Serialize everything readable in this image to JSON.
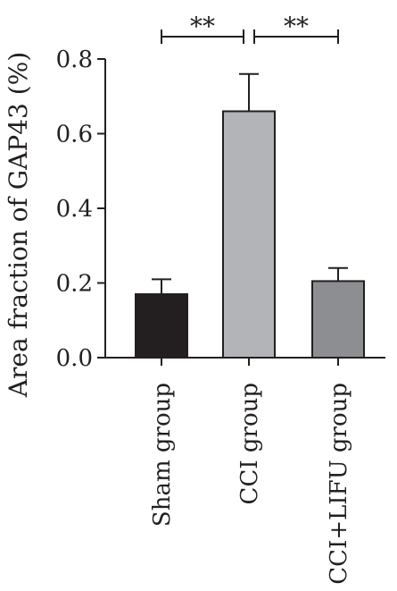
{
  "chart_data": {
    "type": "bar",
    "title": "",
    "xlabel": "",
    "ylabel": "Area fraction of GAP43 (%)",
    "ylim": [
      0,
      0.8
    ],
    "yticks": [
      "0.0",
      "0.2",
      "0.4",
      "0.6",
      "0.8"
    ],
    "ytick_values": [
      0,
      0.2,
      0.4,
      0.6,
      0.8
    ],
    "categories": [
      "Sham group",
      "CCI group",
      "CCI+LIFU group"
    ],
    "values": [
      0.17,
      0.66,
      0.205
    ],
    "errors": [
      0.04,
      0.1,
      0.035
    ],
    "colors": [
      "#231f20",
      "#b3b4b8",
      "#8d8e91"
    ],
    "grid": false,
    "legend": "none",
    "significance": [
      {
        "from": 0,
        "to": 1,
        "label": "**"
      },
      {
        "from": 1,
        "to": 2,
        "label": "**"
      }
    ]
  }
}
